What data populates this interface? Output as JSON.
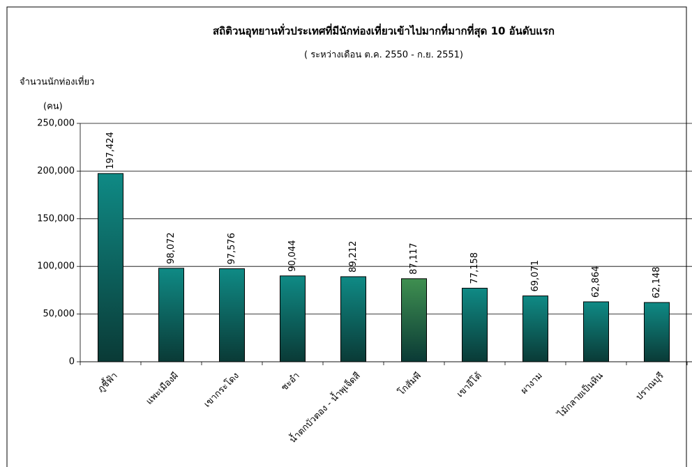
{
  "chart_data": {
    "type": "bar",
    "title": "สถิติวนอุทยานทั่วประเทศที่มีนักท่องเที่ยวเข้าไปมากที่มากที่สุด 10 อันดับแรก",
    "subtitle": "( ระหว่างเดือน ต.ค. 2550 - ก.ย. 2551)",
    "y_label": "จำนวนนักท่องเที่ยว",
    "y_unit": "(คน)",
    "categories": [
      "ภูชี้ฟ้า",
      "แพะเมืองผี",
      "เขากระโดง",
      "ชะอำ",
      "น้ำตกบัวตอง - น้ำพุเจ็ดสี",
      "โกสัมพี",
      "เขาอีโต้",
      "ผางาม",
      "ไม้กลายเป็นหิน",
      "ปราณบุรี"
    ],
    "values": [
      197424,
      98072,
      97576,
      90044,
      89212,
      87117,
      77158,
      69071,
      62864,
      62148
    ],
    "value_labels": [
      "197,424",
      "98,072",
      "97,576",
      "90,044",
      "89,212",
      "87,117",
      "77,158",
      "69,071",
      "62,864",
      "62,148"
    ],
    "colors": [
      "#0f8a85",
      "#0f8a85",
      "#0f8a85",
      "#0f8a85",
      "#0f8a85",
      "#3f8f50",
      "#0f8a85",
      "#0f8a85",
      "#0f8a85",
      "#0f8a85"
    ],
    "ylim": [
      0,
      250000
    ],
    "yticks": [
      0,
      {
        "value": 50000,
        "label": "50,000"
      },
      {
        "value": 100000,
        "label": "100,000"
      },
      {
        "value": 150000,
        "label": "150,000"
      },
      {
        "value": 200000,
        "label": "200,000"
      },
      {
        "value": 250000,
        "label": "250,000"
      }
    ],
    "grid": true
  }
}
